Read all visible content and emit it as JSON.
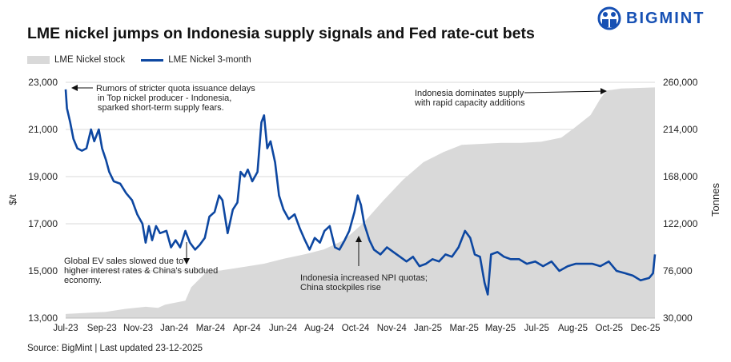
{
  "title": "LME nickel jumps on Indonesia supply signals and Fed rate-cut bets",
  "logo": {
    "text": "BIGMINT",
    "color": "#1650b4"
  },
  "source": "Source: BigMint | Last updated 23-12-2025",
  "chart_data": {
    "type": "line+area",
    "title": "LME nickel jumps on Indonesia supply signals and Fed rate-cut bets",
    "legend": {
      "placement": "top-left",
      "entries": [
        "LME Nickel stock",
        "LME Nickel 3-month"
      ]
    },
    "grid": true,
    "x_tick_labels": [
      "Jul-23",
      "Sep-23",
      "Nov-23",
      "Jan-24",
      "Mar-24",
      "Apr-24",
      "Jun-24",
      "Aug-24",
      "Oct-24",
      "Nov-24",
      "Jan-25",
      "Mar-25",
      "May-25",
      "Jul-25",
      "Aug-25",
      "Oct-25",
      "Dec-25"
    ],
    "y_left": {
      "label": "$/t",
      "range": [
        13000,
        23000
      ],
      "ticks": [
        "13,000",
        "15,000",
        "17,000",
        "19,000",
        "21,000",
        "23,000"
      ]
    },
    "y_right": {
      "label": "Tonnes",
      "range": [
        30000,
        260000
      ],
      "ticks": [
        "30,000",
        "76,000",
        "122,000",
        "168,000",
        "214,000",
        "260,000"
      ]
    },
    "colors": {
      "price": "#0d47a1",
      "stock": "#d9d9d9",
      "grid": "#d9d9d9"
    },
    "series": [
      {
        "name": "LME Nickel stock",
        "type": "area",
        "axis": "right",
        "points": [
          [
            "2023-07-01",
            34000
          ],
          [
            "2023-09-01",
            36000
          ],
          [
            "2023-10-01",
            39000
          ],
          [
            "2023-11-01",
            41000
          ],
          [
            "2023-11-20",
            40000
          ],
          [
            "2023-12-01",
            43000
          ],
          [
            "2024-01-01",
            47000
          ],
          [
            "2024-01-10",
            60000
          ],
          [
            "2024-02-01",
            74000
          ],
          [
            "2024-03-01",
            77000
          ],
          [
            "2024-04-01",
            80000
          ],
          [
            "2024-05-01",
            83000
          ],
          [
            "2024-06-01",
            88000
          ],
          [
            "2024-07-01",
            92000
          ],
          [
            "2024-08-01",
            97000
          ],
          [
            "2024-09-01",
            106000
          ],
          [
            "2024-10-01",
            123000
          ],
          [
            "2024-11-01",
            145000
          ],
          [
            "2024-12-01",
            165000
          ],
          [
            "2025-01-01",
            182000
          ],
          [
            "2025-02-01",
            192000
          ],
          [
            "2025-03-01",
            199000
          ],
          [
            "2025-04-01",
            200000
          ],
          [
            "2025-05-01",
            201000
          ],
          [
            "2025-06-01",
            201000
          ],
          [
            "2025-07-01",
            202000
          ],
          [
            "2025-08-01",
            206000
          ],
          [
            "2025-08-20",
            215000
          ],
          [
            "2025-09-15",
            228000
          ],
          [
            "2025-10-01",
            245000
          ],
          [
            "2025-10-10",
            252000
          ],
          [
            "2025-11-01",
            254000
          ],
          [
            "2025-12-23",
            255000
          ]
        ]
      },
      {
        "name": "LME Nickel 3-month",
        "type": "line",
        "axis": "left",
        "points": [
          [
            "2023-07-01",
            22700
          ],
          [
            "2023-07-03",
            21900
          ],
          [
            "2023-07-08",
            21300
          ],
          [
            "2023-07-13",
            20600
          ],
          [
            "2023-07-19",
            20200
          ],
          [
            "2023-07-26",
            20100
          ],
          [
            "2023-08-02",
            20200
          ],
          [
            "2023-08-09",
            21000
          ],
          [
            "2023-08-14",
            20500
          ],
          [
            "2023-08-21",
            21000
          ],
          [
            "2023-08-26",
            20200
          ],
          [
            "2023-09-01",
            19700
          ],
          [
            "2023-09-06",
            19200
          ],
          [
            "2023-09-13",
            18800
          ],
          [
            "2023-09-23",
            18700
          ],
          [
            "2023-10-02",
            18300
          ],
          [
            "2023-10-11",
            18000
          ],
          [
            "2023-10-19",
            17400
          ],
          [
            "2023-10-27",
            17000
          ],
          [
            "2023-11-01",
            16200
          ],
          [
            "2023-11-06",
            16900
          ],
          [
            "2023-11-11",
            16300
          ],
          [
            "2023-11-17",
            16900
          ],
          [
            "2023-11-23",
            16600
          ],
          [
            "2023-12-03",
            16700
          ],
          [
            "2023-12-10",
            16000
          ],
          [
            "2023-12-17",
            16300
          ],
          [
            "2023-12-24",
            16000
          ],
          [
            "2024-01-01",
            16700
          ],
          [
            "2024-01-08",
            16200
          ],
          [
            "2024-01-16",
            15900
          ],
          [
            "2024-01-23",
            16100
          ],
          [
            "2024-01-31",
            16400
          ],
          [
            "2024-02-07",
            17300
          ],
          [
            "2024-02-15",
            17500
          ],
          [
            "2024-02-22",
            18200
          ],
          [
            "2024-02-27",
            18000
          ],
          [
            "2024-03-06",
            16600
          ],
          [
            "2024-03-14",
            17600
          ],
          [
            "2024-03-21",
            17900
          ],
          [
            "2024-03-26",
            19200
          ],
          [
            "2024-04-01",
            19000
          ],
          [
            "2024-04-06",
            19300
          ],
          [
            "2024-04-13",
            18800
          ],
          [
            "2024-04-21",
            19200
          ],
          [
            "2024-04-27",
            21300
          ],
          [
            "2024-05-01",
            21600
          ],
          [
            "2024-05-06",
            20200
          ],
          [
            "2024-05-11",
            20500
          ],
          [
            "2024-05-18",
            19600
          ],
          [
            "2024-05-24",
            18200
          ],
          [
            "2024-05-31",
            17600
          ],
          [
            "2024-06-08",
            17200
          ],
          [
            "2024-06-17",
            17400
          ],
          [
            "2024-06-25",
            16800
          ],
          [
            "2024-07-03",
            16300
          ],
          [
            "2024-07-10",
            15900
          ],
          [
            "2024-07-18",
            16400
          ],
          [
            "2024-07-26",
            16200
          ],
          [
            "2024-08-02",
            16700
          ],
          [
            "2024-08-10",
            16900
          ],
          [
            "2024-08-18",
            16000
          ],
          [
            "2024-08-25",
            15900
          ],
          [
            "2024-09-02",
            16300
          ],
          [
            "2024-09-09",
            16700
          ],
          [
            "2024-09-17",
            17500
          ],
          [
            "2024-09-22",
            18200
          ],
          [
            "2024-09-27",
            17800
          ],
          [
            "2024-10-02",
            17000
          ],
          [
            "2024-10-10",
            16300
          ],
          [
            "2024-10-17",
            15900
          ],
          [
            "2024-10-27",
            15700
          ],
          [
            "2024-11-06",
            16000
          ],
          [
            "2024-11-16",
            15800
          ],
          [
            "2024-11-26",
            15600
          ],
          [
            "2024-12-06",
            15400
          ],
          [
            "2024-12-16",
            15600
          ],
          [
            "2024-12-26",
            15200
          ],
          [
            "2025-01-05",
            15300
          ],
          [
            "2025-01-15",
            15500
          ],
          [
            "2025-01-25",
            15400
          ],
          [
            "2025-02-04",
            15700
          ],
          [
            "2025-02-14",
            15600
          ],
          [
            "2025-02-24",
            16000
          ],
          [
            "2025-03-06",
            16700
          ],
          [
            "2025-03-14",
            16400
          ],
          [
            "2025-03-21",
            15700
          ],
          [
            "2025-03-29",
            15600
          ],
          [
            "2025-04-05",
            14500
          ],
          [
            "2025-04-10",
            14000
          ],
          [
            "2025-04-15",
            15700
          ],
          [
            "2025-04-25",
            15800
          ],
          [
            "2025-05-05",
            15600
          ],
          [
            "2025-05-15",
            15500
          ],
          [
            "2025-05-28",
            15500
          ],
          [
            "2025-06-09",
            15300
          ],
          [
            "2025-06-22",
            15400
          ],
          [
            "2025-07-04",
            15200
          ],
          [
            "2025-07-17",
            15400
          ],
          [
            "2025-07-29",
            15000
          ],
          [
            "2025-08-11",
            15200
          ],
          [
            "2025-08-23",
            15300
          ],
          [
            "2025-09-05",
            15300
          ],
          [
            "2025-09-18",
            15300
          ],
          [
            "2025-09-30",
            15200
          ],
          [
            "2025-10-13",
            15400
          ],
          [
            "2025-10-25",
            15000
          ],
          [
            "2025-11-07",
            14900
          ],
          [
            "2025-11-19",
            14800
          ],
          [
            "2025-12-01",
            14600
          ],
          [
            "2025-12-14",
            14700
          ],
          [
            "2025-12-20",
            14900
          ],
          [
            "2025-12-23",
            15700
          ]
        ]
      }
    ],
    "annotations": [
      {
        "lines": [
          "Rumors of stricter quota issuance delays",
          "in Top nickel producer - Indonesia,",
          "sparked short-term supply fears."
        ]
      },
      {
        "lines": [
          "Indonesia dominates supply",
          "with rapid capacity additions"
        ]
      },
      {
        "lines": [
          "Global EV sales slowed due to",
          "higher interest rates & China's subdued",
          "economy."
        ]
      },
      {
        "lines": [
          "Indonesia increased NPI quotas;",
          "China stockpiles rise"
        ]
      }
    ]
  }
}
